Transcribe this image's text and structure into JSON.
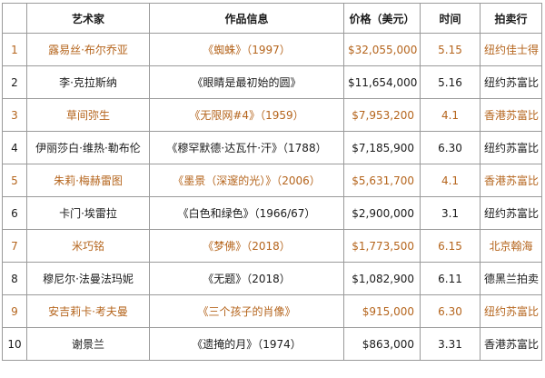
{
  "headers": {
    "no": "",
    "artist": "艺术家",
    "work": "作品信息",
    "price": "价格（美元）",
    "time": "时间",
    "house": "拍卖行"
  },
  "rows": [
    {
      "no": "1",
      "artist": "露易丝·布尔乔亚",
      "work": "《蜘蛛》（1997）",
      "price": "$32,055,000",
      "time": "5.15",
      "house": "纽约佳士得",
      "highlight": true
    },
    {
      "no": "2",
      "artist": "李·克拉斯纳",
      "work": "《眼睛是最初始的圆》",
      "price": "$11,654,000",
      "time": "5.16",
      "house": "纽约苏富比",
      "highlight": false
    },
    {
      "no": "3",
      "artist": "草间弥生",
      "work": "《无限网#4》（1959）",
      "price": "$7,953,200",
      "time": "4.1",
      "house": "香港苏富比",
      "highlight": true
    },
    {
      "no": "4",
      "artist": "伊丽莎白·维热·勒布伦",
      "work": "《穆罕默德·达瓦什·汗》（1788）",
      "price": "$7,185,900",
      "time": "6.30",
      "house": "纽约苏富比",
      "highlight": false
    },
    {
      "no": "5",
      "artist": "朱莉·梅赫雷图",
      "work": "《墨景（深邃的光）》（2006）",
      "price": "$5,631,700",
      "time": "4.1",
      "house": "香港苏富比",
      "highlight": true
    },
    {
      "no": "6",
      "artist": "卡门·埃雷拉",
      "work": "《白色和绿色》（1966/67）",
      "price": "$2,900,000",
      "time": "3.1",
      "house": "纽约苏富比",
      "highlight": false
    },
    {
      "no": "7",
      "artist": "米巧铭",
      "work": "《梦佛》（2018）",
      "price": "$1,773,500",
      "time": "6.15",
      "house": "北京翰海",
      "highlight": true
    },
    {
      "no": "8",
      "artist": "穆尼尔·法曼法玛妮",
      "work": "《无题》（2018）",
      "price": "$1,082,900",
      "time": "6.11",
      "house": "德黑兰拍卖",
      "highlight": false
    },
    {
      "no": "9",
      "artist": "安吉莉卡·考夫曼",
      "work": "《三个孩子的肖像》",
      "price": "$915,000",
      "time": "6.30",
      "house": "纽约苏富比",
      "highlight": true
    },
    {
      "no": "10",
      "artist": "谢景兰",
      "work": "《遗掩的月》（1974）",
      "price": "$863,000",
      "time": "3.31",
      "house": "香港苏富比",
      "highlight": false
    }
  ],
  "colors": {
    "highlight_text": "#b5651d",
    "normal_text": "#1a1a1a",
    "border": "#9a9a9a"
  }
}
